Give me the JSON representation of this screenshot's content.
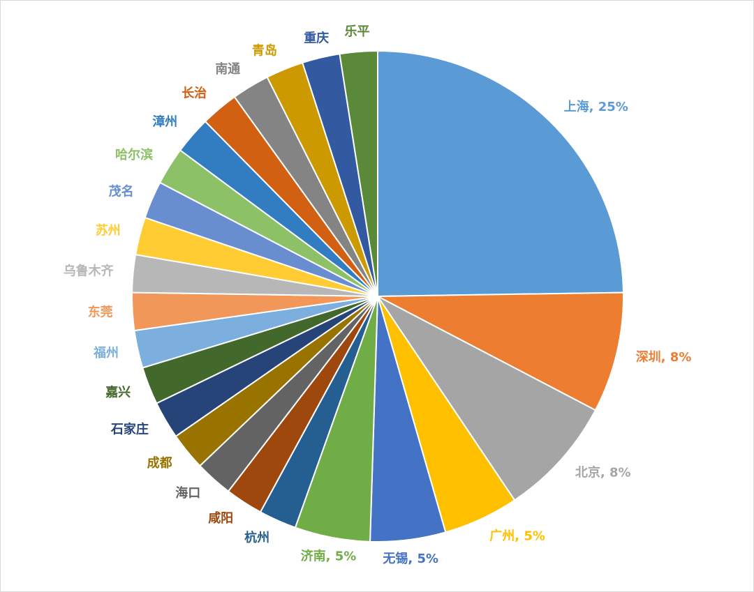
{
  "chart_data": {
    "type": "pie",
    "title": "",
    "start_angle_deg": 0,
    "direction": "clockwise",
    "slices": [
      {
        "label": "上海",
        "value": 25,
        "display": "上海, 25%",
        "color": "#5b9bd5"
      },
      {
        "label": "深圳",
        "value": 8,
        "display": "深圳, 8%",
        "color": "#ed7d31"
      },
      {
        "label": "北京",
        "value": 8,
        "display": "北京, 8%",
        "color": "#a5a5a5"
      },
      {
        "label": "广州",
        "value": 5,
        "display": "广州, 5%",
        "color": "#ffc000"
      },
      {
        "label": "无锡",
        "value": 5,
        "display": "无锡, 5%",
        "color": "#4472c4"
      },
      {
        "label": "济南",
        "value": 5,
        "display": "济南, 5%",
        "color": "#70ad47"
      },
      {
        "label": "杭州",
        "value": 2.5,
        "display": "杭州",
        "color": "#255e91"
      },
      {
        "label": "咸阳",
        "value": 2.5,
        "display": "咸阳",
        "color": "#9e480e"
      },
      {
        "label": "海口",
        "value": 2.5,
        "display": "海口",
        "color": "#636363"
      },
      {
        "label": "成都",
        "value": 2.5,
        "display": "成都",
        "color": "#997300"
      },
      {
        "label": "石家庄",
        "value": 2.5,
        "display": "石家庄",
        "color": "#264478"
      },
      {
        "label": "嘉兴",
        "value": 2.5,
        "display": "嘉兴",
        "color": "#43682b"
      },
      {
        "label": "福州",
        "value": 2.5,
        "display": "福州",
        "color": "#7cafdd"
      },
      {
        "label": "东莞",
        "value": 2.5,
        "display": "东莞",
        "color": "#f1975a"
      },
      {
        "label": "乌鲁木齐",
        "value": 2.5,
        "display": "乌鲁木齐",
        "color": "#b7b7b7"
      },
      {
        "label": "苏州",
        "value": 2.5,
        "display": "苏州",
        "color": "#ffcd33"
      },
      {
        "label": "茂名",
        "value": 2.5,
        "display": "茂名",
        "color": "#698ed0"
      },
      {
        "label": "哈尔滨",
        "value": 2.5,
        "display": "哈尔滨",
        "color": "#8cc168"
      },
      {
        "label": "漳州",
        "value": 2.5,
        "display": "漳州",
        "color": "#327dc2"
      },
      {
        "label": "长治",
        "value": 2.5,
        "display": "长治",
        "color": "#d26012"
      },
      {
        "label": "南通",
        "value": 2.5,
        "display": "南通",
        "color": "#848484"
      },
      {
        "label": "青岛",
        "value": 2.5,
        "display": "青岛",
        "color": "#cc9a00"
      },
      {
        "label": "重庆",
        "value": 2.5,
        "display": "重庆",
        "color": "#335aa1"
      },
      {
        "label": "乐平",
        "value": 2.5,
        "display": "乐平",
        "color": "#5a8a39"
      }
    ]
  }
}
